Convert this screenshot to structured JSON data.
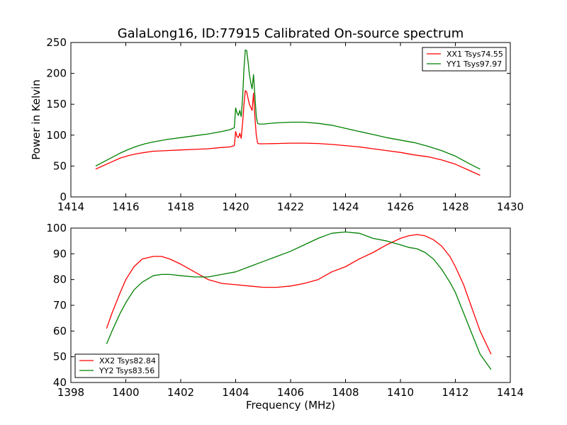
{
  "figure": {
    "title": "GalaLong16, ID:77915 Calibrated On-source spectrum"
  },
  "colors": {
    "red": "#ff0000",
    "green": "#008000",
    "axes": "#000000",
    "background": "#ffffff"
  },
  "chart_data": [
    {
      "type": "line",
      "title": "GalaLong16, ID:77915 Calibrated On-source spectrum",
      "xlabel": "",
      "ylabel": "Power in Kelvin",
      "xlim": [
        1414,
        1430
      ],
      "ylim": [
        0,
        250
      ],
      "xticks": [
        1414,
        1416,
        1418,
        1420,
        1422,
        1424,
        1426,
        1428,
        1430
      ],
      "yticks": [
        0,
        50,
        100,
        150,
        200,
        250
      ],
      "grid": false,
      "legend_position": "upper right",
      "series": [
        {
          "name": "XX1 Tsys74.55",
          "color": "#ff0000",
          "x": [
            1414.9,
            1415.2,
            1415.5,
            1415.8,
            1416.1,
            1416.4,
            1416.7,
            1417.0,
            1417.5,
            1418.0,
            1418.5,
            1419.0,
            1419.5,
            1419.8,
            1419.95,
            1420.0,
            1420.05,
            1420.1,
            1420.15,
            1420.2,
            1420.25,
            1420.3,
            1420.35,
            1420.4,
            1420.45,
            1420.5,
            1420.55,
            1420.6,
            1420.65,
            1420.7,
            1420.75,
            1420.8,
            1420.85,
            1420.9,
            1421.0,
            1421.5,
            1422.0,
            1422.5,
            1423.0,
            1423.5,
            1424.0,
            1424.5,
            1425.0,
            1425.5,
            1426.0,
            1426.5,
            1427.0,
            1427.5,
            1428.0,
            1428.5,
            1428.9
          ],
          "y": [
            45,
            51,
            57,
            63,
            67,
            70,
            72,
            74,
            75,
            76,
            77,
            78,
            80,
            81,
            83,
            106,
            98,
            96,
            103,
            95,
            118,
            148,
            172,
            170,
            160,
            150,
            145,
            140,
            168,
            130,
            100,
            87,
            86,
            86,
            86,
            86.5,
            87,
            87,
            86.5,
            85,
            83,
            81,
            78,
            75,
            72,
            68,
            65,
            60,
            53,
            43,
            35
          ]
        },
        {
          "name": "YY1 Tsys97.97",
          "color": "#008000",
          "x": [
            1414.9,
            1415.2,
            1415.5,
            1415.8,
            1416.1,
            1416.4,
            1416.7,
            1417.0,
            1417.5,
            1418.0,
            1418.5,
            1419.0,
            1419.5,
            1419.8,
            1419.95,
            1420.0,
            1420.05,
            1420.1,
            1420.15,
            1420.2,
            1420.25,
            1420.3,
            1420.35,
            1420.4,
            1420.45,
            1420.5,
            1420.55,
            1420.6,
            1420.65,
            1420.7,
            1420.75,
            1420.8,
            1420.85,
            1420.9,
            1421.0,
            1421.5,
            1422.0,
            1422.5,
            1423.0,
            1423.5,
            1424.0,
            1424.5,
            1425.0,
            1425.5,
            1426.0,
            1426.5,
            1427.0,
            1427.5,
            1428.0,
            1428.5,
            1428.9
          ],
          "y": [
            50,
            57,
            64,
            71,
            77,
            82,
            86,
            89,
            93,
            96,
            99,
            102,
            106,
            109,
            112,
            144,
            136,
            132,
            140,
            130,
            158,
            205,
            238,
            237,
            220,
            198,
            185,
            175,
            198,
            165,
            130,
            119,
            118,
            118,
            118,
            120,
            121,
            121,
            119,
            116,
            111,
            106,
            101,
            96,
            92,
            88,
            82,
            75,
            66,
            54,
            45
          ]
        }
      ]
    },
    {
      "type": "line",
      "title": "",
      "xlabel": "Frequency (MHz)",
      "ylabel": "",
      "xlim": [
        1398,
        1414
      ],
      "ylim": [
        40,
        100
      ],
      "xticks": [
        1398,
        1400,
        1402,
        1404,
        1406,
        1408,
        1410,
        1412,
        1414
      ],
      "yticks": [
        40,
        50,
        60,
        70,
        80,
        90,
        100
      ],
      "grid": false,
      "legend_position": "lower left",
      "series": [
        {
          "name": "XX2 Tsys82.84",
          "color": "#ff0000",
          "x": [
            1399.3,
            1399.5,
            1399.8,
            1400.0,
            1400.3,
            1400.6,
            1401.0,
            1401.3,
            1401.6,
            1402.0,
            1402.5,
            1403.0,
            1403.5,
            1404.0,
            1404.5,
            1405.0,
            1405.5,
            1406.0,
            1406.5,
            1407.0,
            1407.5,
            1408.0,
            1408.5,
            1409.0,
            1409.5,
            1410.0,
            1410.3,
            1410.6,
            1410.9,
            1411.2,
            1411.5,
            1411.8,
            1412.0,
            1412.3,
            1412.6,
            1412.9,
            1413.3
          ],
          "y": [
            61,
            67,
            75,
            80,
            85,
            88,
            89,
            89,
            88,
            86,
            83,
            80,
            78.5,
            78,
            77.5,
            77,
            77,
            77.5,
            78.5,
            80,
            83,
            85,
            88,
            90.5,
            93.5,
            96,
            97,
            97.5,
            97,
            95.5,
            93,
            89,
            85,
            78,
            69,
            60,
            51
          ]
        },
        {
          "name": "YY2 Tsys83.56",
          "color": "#008000",
          "x": [
            1399.3,
            1399.5,
            1399.8,
            1400.0,
            1400.3,
            1400.6,
            1401.0,
            1401.3,
            1401.6,
            1402.0,
            1402.5,
            1403.0,
            1403.5,
            1404.0,
            1404.5,
            1405.0,
            1405.5,
            1406.0,
            1406.5,
            1407.0,
            1407.5,
            1408.0,
            1408.5,
            1409.0,
            1409.5,
            1410.0,
            1410.3,
            1410.6,
            1410.9,
            1411.2,
            1411.5,
            1411.8,
            1412.0,
            1412.3,
            1412.6,
            1412.9,
            1413.3
          ],
          "y": [
            55,
            60,
            67,
            71,
            76,
            79,
            81.5,
            82,
            82,
            81.5,
            81,
            81,
            82,
            83,
            85,
            87,
            89,
            91,
            93.5,
            96,
            98,
            98.5,
            98,
            96,
            95,
            93.5,
            92.5,
            92,
            90.5,
            88,
            84,
            79,
            75,
            67,
            59,
            51,
            45
          ]
        }
      ]
    }
  ]
}
